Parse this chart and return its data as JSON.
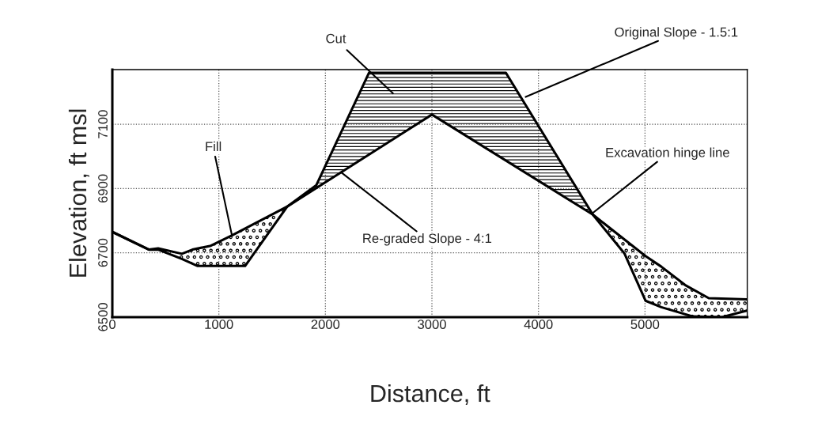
{
  "chart_data": {
    "type": "line",
    "xlabel": "Distance, ft",
    "ylabel": "Elevation, ft msl",
    "xlim": [
      0,
      5960
    ],
    "xticks": [
      0,
      1000,
      2000,
      3000,
      4000,
      5000
    ],
    "ylim": [
      6500,
      7270
    ],
    "yticks": [
      6500,
      6700,
      6900,
      7100
    ],
    "grid": true,
    "legend": false,
    "marker": "none",
    "line_style": "solid",
    "series": [
      {
        "color": "#000000",
        "x": [
          0,
          344,
          430,
          653,
          801,
          1246,
          1642,
          1914,
          2409,
          3694,
          4510,
          4807,
          5005,
          5153,
          5450,
          5722,
          5957
        ],
        "values": [
          6765,
          6710,
          6710,
          6681,
          6659,
          6659,
          6844,
          6910,
          7260,
          7260,
          6819,
          6698,
          6551,
          6531,
          6502,
          6500,
          6520
        ]
      },
      {
        "color": "#000000",
        "x": [
          0,
          344,
          430,
          653,
          752,
          925,
          1123,
          1642,
          3000,
          4510,
          5005,
          5153,
          5376,
          5599,
          5957
        ],
        "values": [
          6765,
          6710,
          6714,
          6697,
          6710,
          6722,
          6754,
          6844,
          7130,
          6819,
          6690,
          6657,
          6600,
          6559,
          6555
        ]
      }
    ],
    "annotations": [
      "Cut",
      {
        "text": "Original Slope - 1.5:1",
        "x": 3880,
        "y": 7185
      },
      {
        "text": "Fill",
        "x": 1123,
        "y": 6754
      },
      {
        "text": "Excavation hinge line",
        "x": 4510,
        "y": 6824
      },
      {
        "text": "Re-graded Slope - 4:1",
        "x": 2150,
        "y": 6950
      }
    ]
  }
}
